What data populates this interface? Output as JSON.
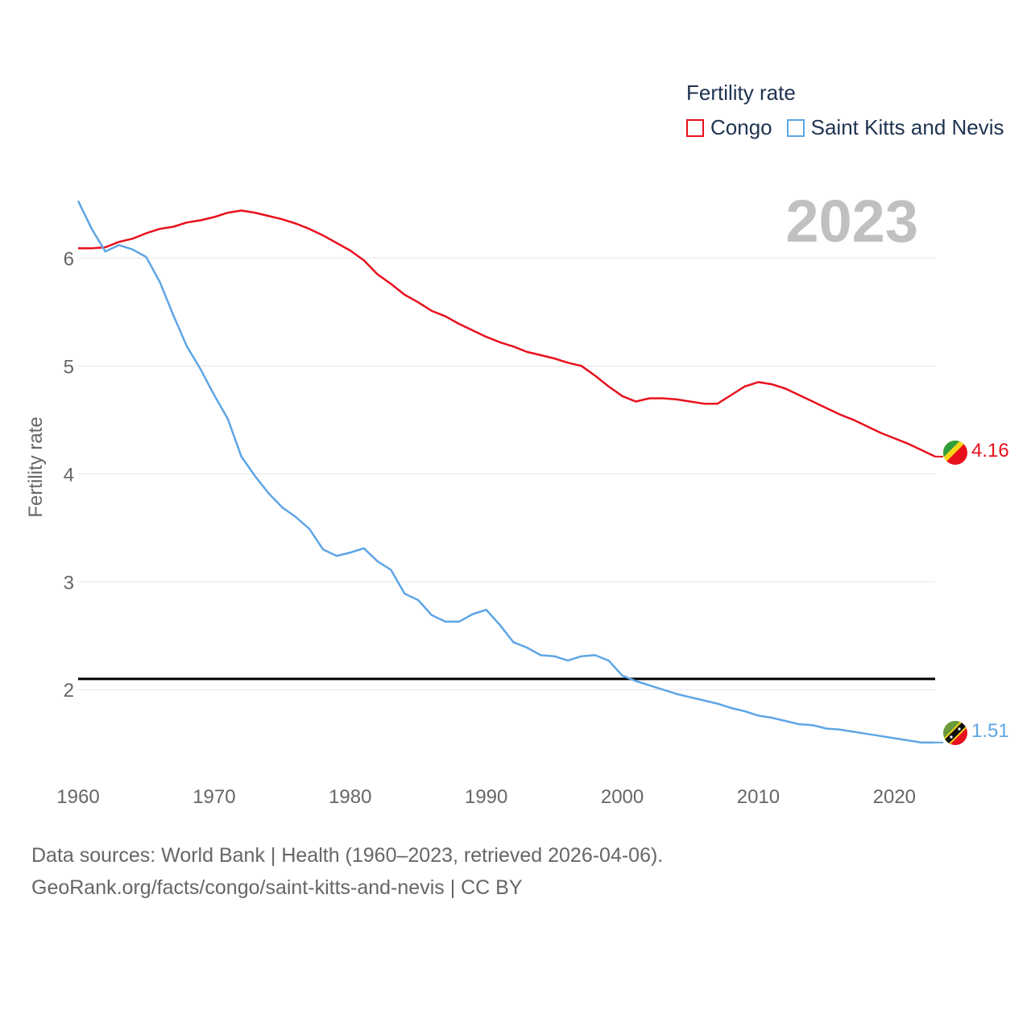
{
  "chart_data": {
    "type": "line",
    "year_label": "2023",
    "ylabel": "Fertility rate",
    "xlim": [
      1960,
      2023
    ],
    "ylim": [
      1.3,
      6.6
    ],
    "yticks": [
      2,
      3,
      4,
      5,
      6
    ],
    "xticks": [
      1960,
      1970,
      1980,
      1990,
      2000,
      2010,
      2020
    ],
    "reference_line": {
      "y": 2.1,
      "color": "#000000"
    },
    "x": [
      1960,
      1961,
      1962,
      1963,
      1964,
      1965,
      1966,
      1967,
      1968,
      1969,
      1970,
      1971,
      1972,
      1973,
      1974,
      1975,
      1976,
      1977,
      1978,
      1979,
      1980,
      1981,
      1982,
      1983,
      1984,
      1985,
      1986,
      1987,
      1988,
      1989,
      1990,
      1991,
      1992,
      1993,
      1994,
      1995,
      1996,
      1997,
      1998,
      1999,
      2000,
      2001,
      2002,
      2003,
      2004,
      2005,
      2006,
      2007,
      2008,
      2009,
      2010,
      2011,
      2012,
      2013,
      2014,
      2015,
      2016,
      2017,
      2018,
      2019,
      2020,
      2021,
      2022,
      2023
    ],
    "series": [
      {
        "name": "Congo",
        "color": "#e8101d",
        "end_label": "4.16",
        "values": [
          6.09,
          6.09,
          6.1,
          6.15,
          6.18,
          6.23,
          6.27,
          6.29,
          6.33,
          6.35,
          6.38,
          6.42,
          6.44,
          6.42,
          6.39,
          6.36,
          6.32,
          6.27,
          6.21,
          6.14,
          6.07,
          5.98,
          5.85,
          5.76,
          5.66,
          5.59,
          5.51,
          5.46,
          5.39,
          5.33,
          5.27,
          5.22,
          5.18,
          5.13,
          5.1,
          5.07,
          5.03,
          5.0,
          4.91,
          4.81,
          4.72,
          4.67,
          4.7,
          4.7,
          4.69,
          4.67,
          4.65,
          4.65,
          4.73,
          4.81,
          4.85,
          4.83,
          4.79,
          4.73,
          4.67,
          4.61,
          4.55,
          4.5,
          4.44,
          4.38,
          4.33,
          4.28,
          4.22,
          4.16
        ]
      },
      {
        "name": "Saint Kitts and Nevis",
        "color": "#5ea5e6",
        "end_label": "1.51",
        "values": [
          6.53,
          6.27,
          6.06,
          6.12,
          6.08,
          6.01,
          5.78,
          5.47,
          5.18,
          4.97,
          4.73,
          4.51,
          4.16,
          3.98,
          3.82,
          3.69,
          3.6,
          3.49,
          3.3,
          3.24,
          3.27,
          3.31,
          3.19,
          3.11,
          2.89,
          2.83,
          2.69,
          2.63,
          2.63,
          2.7,
          2.74,
          2.6,
          2.44,
          2.39,
          2.32,
          2.31,
          2.27,
          2.31,
          2.32,
          2.27,
          2.13,
          2.08,
          2.04,
          2.0,
          1.96,
          1.93,
          1.9,
          1.87,
          1.83,
          1.8,
          1.76,
          1.74,
          1.71,
          1.68,
          1.67,
          1.64,
          1.63,
          1.61,
          1.59,
          1.57,
          1.55,
          1.53,
          1.51,
          1.51
        ]
      }
    ]
  },
  "legend": {
    "title": "Fertility rate",
    "items": [
      {
        "label": "Congo",
        "color": "#e8101d"
      },
      {
        "label": "Saint Kitts and Nevis",
        "color": "#5ea5e6"
      }
    ]
  },
  "footer": {
    "line1": "Data sources: World Bank | Health (1960–2023, retrieved 2026-04-06).",
    "line2": "GeoRank.org/facts/congo/saint-kitts-and-nevis | CC BY"
  }
}
